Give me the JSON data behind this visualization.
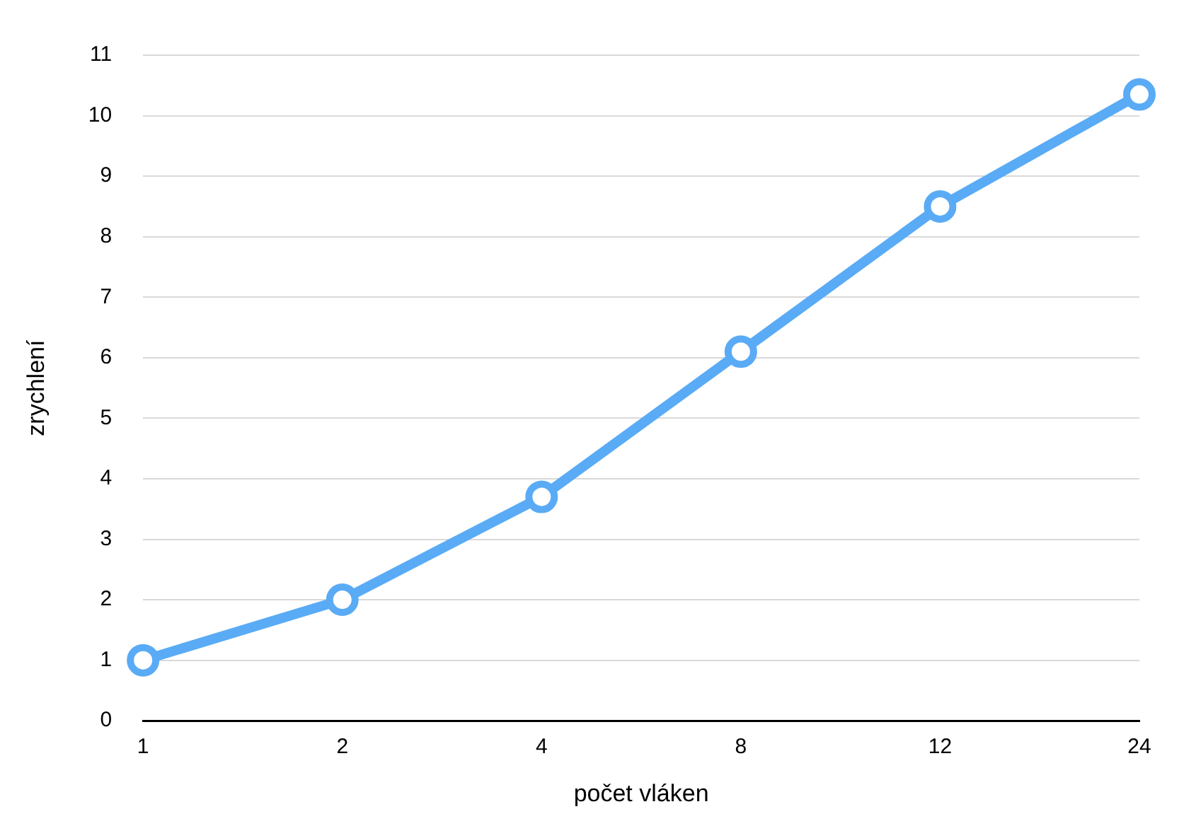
{
  "chart_data": {
    "type": "line",
    "xlabel": "počet vláken",
    "ylabel": "zrychlení",
    "categories": [
      "1",
      "2",
      "4",
      "8",
      "12",
      "24"
    ],
    "series": [
      {
        "color": "#5aabf5",
        "values": [
          1,
          2,
          3.7,
          6.1,
          8.5,
          10.35
        ]
      }
    ],
    "ylim": [
      0,
      11
    ],
    "yticks": [
      0,
      1,
      2,
      3,
      4,
      5,
      6,
      7,
      8,
      9,
      10,
      11
    ],
    "grid": "y",
    "legend": false,
    "marker": "circle",
    "line_style": "solid"
  }
}
